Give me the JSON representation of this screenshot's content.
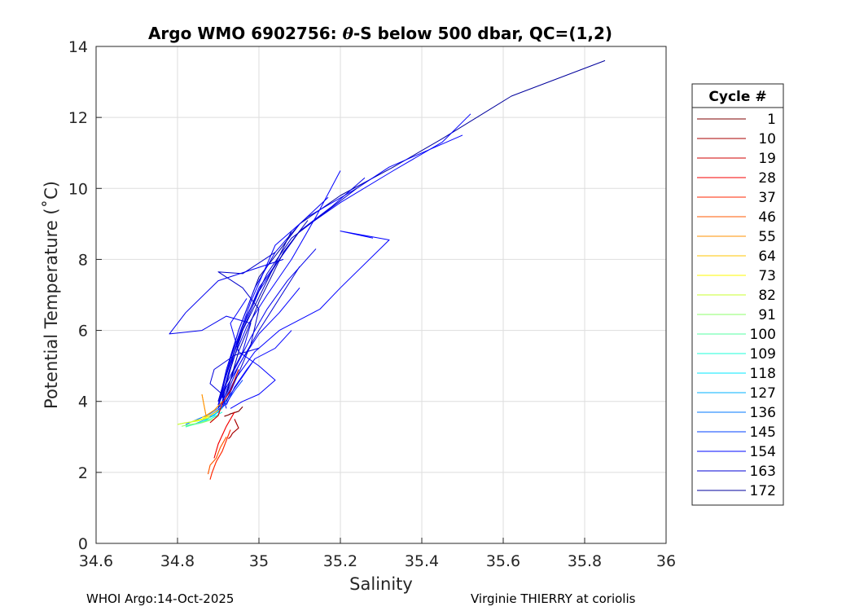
{
  "chart_data": {
    "type": "line",
    "title_prefix": "Argo WMO 6902756: ",
    "title_symbol": "θ",
    "title_suffix": "-S below 500 dbar,  QC=(1,2)",
    "xlabel": "Salinity",
    "ylabel": "Potential Temperature (˚C)",
    "xlim": [
      34.6,
      36
    ],
    "ylim": [
      0,
      14
    ],
    "xticks": [
      "34.6",
      "34.8",
      "35",
      "35.2",
      "35.4",
      "35.6",
      "35.8",
      "36"
    ],
    "yticks": [
      "0",
      "2",
      "4",
      "6",
      "8",
      "10",
      "12",
      "14"
    ],
    "grid": true,
    "legend_title": "Cycle #",
    "legend_position": "outside-right",
    "series": [
      {
        "name": "1",
        "color": "#7f0000",
        "x": [
          34.96,
          34.95,
          34.93,
          34.925,
          34.915
        ],
        "y": [
          3.85,
          3.72,
          3.65,
          3.62,
          3.58
        ]
      },
      {
        "name": "10",
        "color": "#a80000",
        "x": [
          34.94,
          34.95,
          34.935,
          34.93,
          34.925
        ],
        "y": [
          3.5,
          3.25,
          3.1,
          3.0,
          2.95
        ]
      },
      {
        "name": "19",
        "color": "#d00000",
        "x": [
          34.95,
          34.93,
          34.91,
          34.9,
          34.88
        ],
        "y": [
          4.9,
          4.3,
          3.95,
          3.6,
          3.4
        ]
      },
      {
        "name": "28",
        "color": "#f40000",
        "x": [
          34.94,
          34.92,
          34.9,
          34.89
        ],
        "y": [
          3.7,
          3.3,
          2.8,
          2.4
        ]
      },
      {
        "name": "37",
        "color": "#ff2600",
        "x": [
          34.93,
          34.91,
          34.895,
          34.885,
          34.88
        ],
        "y": [
          3.2,
          2.6,
          2.3,
          2.0,
          1.8
        ]
      },
      {
        "name": "46",
        "color": "#ff5a00",
        "x": [
          34.92,
          34.905,
          34.895,
          34.88,
          34.875
        ],
        "y": [
          3.0,
          2.7,
          2.4,
          2.2,
          1.95
        ]
      },
      {
        "name": "55",
        "color": "#ff9200",
        "x": [
          34.91,
          34.89,
          34.87,
          34.86
        ],
        "y": [
          4.0,
          3.75,
          3.6,
          4.2
        ]
      },
      {
        "name": "64",
        "color": "#ffc600",
        "x": [
          34.9,
          34.88,
          34.86
        ],
        "y": [
          3.75,
          3.6,
          3.55
        ]
      },
      {
        "name": "73",
        "color": "#fdf800",
        "x": [
          34.88,
          34.86,
          34.84,
          34.83
        ],
        "y": [
          3.6,
          3.5,
          3.45,
          3.4
        ]
      },
      {
        "name": "82",
        "color": "#c8ff2e",
        "x": [
          34.88,
          34.85,
          34.82,
          34.8
        ],
        "y": [
          3.55,
          3.45,
          3.4,
          3.35
        ]
      },
      {
        "name": "91",
        "color": "#8cff6b",
        "x": [
          34.89,
          34.86,
          34.83,
          34.81
        ],
        "y": [
          3.5,
          3.4,
          3.35,
          3.3
        ]
      },
      {
        "name": "100",
        "color": "#54ffa3",
        "x": [
          34.9,
          34.87,
          34.84,
          34.82
        ],
        "y": [
          3.6,
          3.45,
          3.35,
          3.28
        ]
      },
      {
        "name": "109",
        "color": "#1effd9",
        "x": [
          34.91,
          34.88,
          34.85,
          34.82
        ],
        "y": [
          3.7,
          3.5,
          3.38,
          3.3
        ]
      },
      {
        "name": "118",
        "color": "#00e8ff",
        "x": [
          34.91,
          34.88,
          34.86,
          34.83
        ],
        "y": [
          3.8,
          3.55,
          3.4,
          3.32
        ]
      },
      {
        "name": "127",
        "color": "#00b0ff",
        "x": [
          34.91,
          34.89,
          34.86,
          34.84
        ],
        "y": [
          3.85,
          3.6,
          3.45,
          3.35
        ]
      },
      {
        "name": "136",
        "color": "#0078ff",
        "x": [
          34.93,
          34.91,
          34.88,
          34.85,
          34.82
        ],
        "y": [
          4.2,
          3.9,
          3.65,
          3.5,
          3.35
        ]
      },
      {
        "name": "145",
        "color": "#0040ff",
        "x": [
          34.96,
          34.94,
          34.92,
          34.9,
          34.87
        ],
        "y": [
          4.6,
          4.3,
          3.95,
          3.7,
          3.5
        ]
      },
      {
        "name": "154",
        "color": "#0008ff",
        "x": [
          34.99,
          34.96,
          34.93,
          34.91,
          34.88
        ],
        "y": [
          5.2,
          4.7,
          4.2,
          3.85,
          3.6
        ]
      },
      {
        "name": "163",
        "color": "#0000d4",
        "x": [
          35.1,
          35.05,
          35.0,
          34.95,
          34.92,
          34.9
        ],
        "y": [
          7.8,
          6.9,
          6.0,
          5.0,
          4.2,
          3.8
        ]
      },
      {
        "name": "172",
        "color": "#00009c",
        "x": [
          35.85,
          35.62,
          35.45,
          35.33,
          35.2,
          35.1,
          35.0,
          34.95,
          34.92,
          34.9
        ],
        "y": [
          13.6,
          12.6,
          11.4,
          10.6,
          9.8,
          9.0,
          7.5,
          6.0,
          4.8,
          4.0
        ]
      }
    ],
    "extra_traces": [
      {
        "color": "#0000ff",
        "x": [
          35.52,
          35.45,
          35.33,
          35.2,
          35.1,
          35.0,
          34.95,
          34.92,
          34.9
        ],
        "y": [
          12.1,
          11.3,
          10.5,
          9.6,
          8.8,
          7.2,
          5.8,
          4.6,
          3.9
        ]
      },
      {
        "color": "#0000ff",
        "x": [
          35.5,
          35.4,
          35.32,
          35.24,
          35.12,
          35.04,
          34.98,
          34.93,
          34.9
        ],
        "y": [
          11.5,
          11.0,
          10.6,
          10.0,
          9.2,
          8.4,
          6.8,
          5.2,
          4.0
        ]
      },
      {
        "color": "#0000ee",
        "x": [
          35.26,
          35.18,
          35.1,
          35.05,
          35.0,
          34.96,
          34.92,
          34.9
        ],
        "y": [
          10.3,
          9.5,
          8.8,
          8.0,
          7.1,
          6.0,
          4.8,
          3.8
        ]
      },
      {
        "color": "#0000ee",
        "x": [
          35.17,
          35.1,
          35.04,
          34.99,
          34.95,
          34.92,
          34.9
        ],
        "y": [
          9.75,
          9.0,
          8.2,
          7.2,
          6.0,
          4.9,
          3.9
        ]
      },
      {
        "color": "#0000cc",
        "x": [
          35.24,
          35.16,
          35.08,
          35.02,
          34.97,
          34.93,
          34.9
        ],
        "y": [
          10.0,
          9.3,
          8.6,
          7.6,
          6.4,
          5.1,
          4.0
        ]
      },
      {
        "color": "#0000ff",
        "x": [
          35.28,
          35.2,
          35.32,
          35.2,
          35.15,
          35.05,
          34.99,
          34.94,
          34.91
        ],
        "y": [
          8.6,
          8.8,
          8.55,
          7.2,
          6.6,
          6.0,
          5.4,
          4.6,
          3.9
        ]
      },
      {
        "color": "#0000ff",
        "x": [
          35.2,
          35.14,
          35.08,
          35.02,
          34.97,
          34.93,
          34.91
        ],
        "y": [
          10.5,
          9.2,
          8.0,
          7.0,
          6.1,
          5.0,
          4.0
        ]
      },
      {
        "color": "#0000cc",
        "x": [
          35.04,
          34.96,
          34.9,
          34.96,
          35.0,
          34.98,
          34.95,
          34.92
        ],
        "y": [
          8.2,
          7.6,
          7.65,
          7.2,
          6.6,
          5.6,
          4.8,
          4.0
        ]
      },
      {
        "color": "#0000ee",
        "x": [
          35.06,
          34.9,
          34.82,
          34.78,
          34.86,
          34.92,
          34.98,
          34.96,
          34.92,
          34.9
        ],
        "y": [
          8.0,
          7.4,
          6.5,
          5.9,
          6.0,
          6.4,
          6.2,
          5.4,
          4.5,
          3.9
        ]
      },
      {
        "color": "#0000ee",
        "x": [
          35.14,
          35.07,
          35.02,
          34.98,
          34.94,
          34.91
        ],
        "y": [
          8.3,
          7.4,
          6.6,
          5.8,
          4.9,
          4.0
        ]
      },
      {
        "color": "#0000ff",
        "x": [
          35.1,
          35.05,
          35.0,
          34.96,
          34.92,
          34.9
        ],
        "y": [
          7.2,
          6.5,
          5.9,
          5.2,
          4.4,
          3.9
        ]
      },
      {
        "color": "#0000ff",
        "x": [
          34.97,
          34.93,
          34.95,
          35.0,
          35.04,
          35.0,
          34.96,
          34.93
        ],
        "y": [
          6.9,
          6.2,
          5.4,
          5.0,
          4.6,
          4.2,
          4.0,
          3.8
        ]
      },
      {
        "color": "#1010ff",
        "x": [
          35.08,
          35.04,
          34.99,
          34.97,
          34.94,
          34.92
        ],
        "y": [
          6.0,
          5.5,
          5.2,
          4.9,
          4.4,
          3.9
        ]
      },
      {
        "color": "#0000dd",
        "x": [
          35.0,
          34.94,
          34.89,
          34.88,
          34.91,
          34.92
        ],
        "y": [
          5.5,
          5.3,
          4.9,
          4.5,
          4.2,
          3.8
        ]
      },
      {
        "color": "#0000aa",
        "x": [
          35.12,
          35.06,
          35.0,
          34.95,
          34.92
        ],
        "y": [
          9.1,
          8.2,
          6.8,
          5.4,
          4.2
        ]
      },
      {
        "color": "#0000bb",
        "x": [
          35.08,
          35.02,
          34.96,
          34.93,
          34.91
        ],
        "y": [
          8.8,
          7.4,
          6.0,
          4.9,
          4.1
        ]
      }
    ],
    "footer_left": "WHOI Argo:14-Oct-2025",
    "footer_right": "Virginie THIERRY at coriolis"
  }
}
